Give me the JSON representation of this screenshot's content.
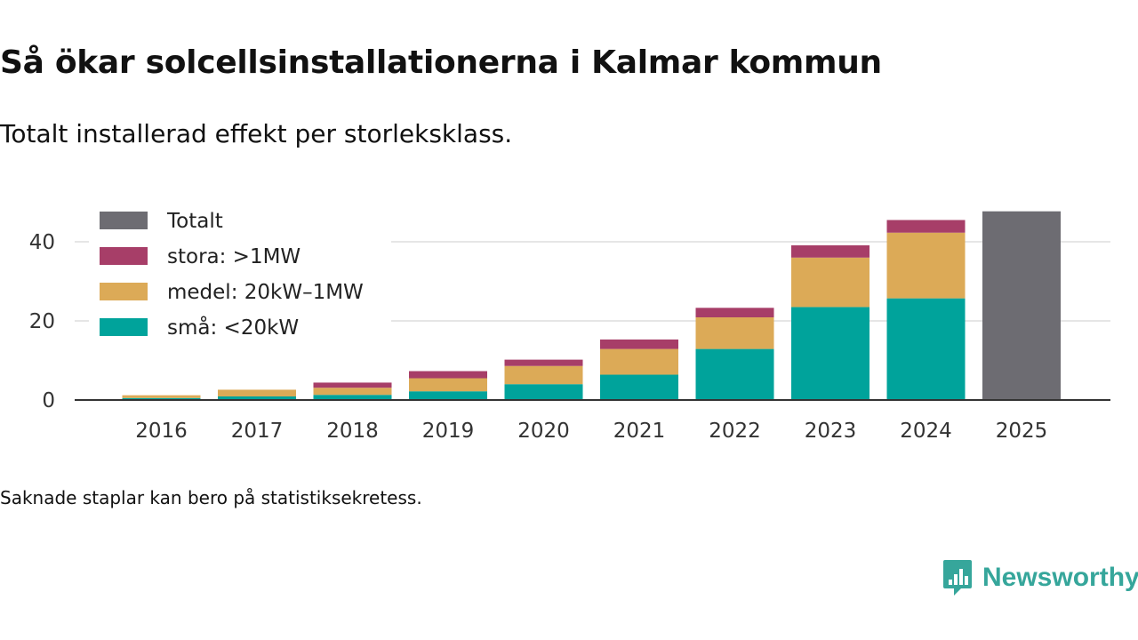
{
  "title": "Så ökar solcellsinstallationerna i Kalmar kommun",
  "subtitle": "Totalt installerad effekt per storleksklass.",
  "note": "Saknade staplar kan bero på statistiksekretess.",
  "brand": {
    "name": "Newsworthy",
    "icon": "newsworthy-logo-icon"
  },
  "colors": {
    "small": "#00a39b",
    "medium": "#dcaa57",
    "large": "#a73e68",
    "total": "#6d6c72",
    "grid": "#dddddd",
    "axis": "#333333"
  },
  "chart_data": {
    "type": "bar",
    "stacked": true,
    "title": "Så ökar solcellsinstallationerna i Kalmar kommun",
    "subtitle": "Totalt installerad effekt per storleksklass.",
    "xlabel": "",
    "ylabel": "",
    "categories": [
      "2016",
      "2017",
      "2018",
      "2019",
      "2020",
      "2021",
      "2022",
      "2023",
      "2024",
      "2025"
    ],
    "series": [
      {
        "key": "small",
        "name": "små: <20kW",
        "values": [
          0.5,
          0.9,
          1.3,
          2.2,
          4.0,
          6.4,
          12.9,
          23.5,
          25.7,
          null
        ]
      },
      {
        "key": "medium",
        "name": "medel: 20kW–1MW",
        "values": [
          0.7,
          1.7,
          1.8,
          3.3,
          4.6,
          6.5,
          8.0,
          12.5,
          16.6,
          null
        ]
      },
      {
        "key": "large",
        "name": "stora: >1MW",
        "values": [
          0.0,
          0.0,
          1.3,
          1.8,
          1.6,
          2.4,
          2.4,
          3.1,
          3.2,
          null
        ]
      },
      {
        "key": "total",
        "name": "Totalt",
        "values": [
          null,
          null,
          null,
          null,
          null,
          null,
          null,
          null,
          null,
          47.7
        ]
      }
    ],
    "legend_order": [
      "total",
      "large",
      "medium",
      "small"
    ],
    "yticks": [
      0,
      20,
      40
    ],
    "ylim": [
      0,
      50
    ],
    "grid": true,
    "legend_position": "top-left"
  }
}
